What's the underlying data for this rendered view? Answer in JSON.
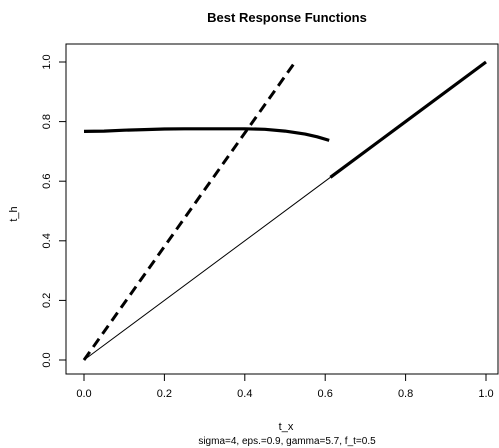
{
  "chart_data": {
    "type": "line",
    "title": "Best Response Functions",
    "xlabel": "t_x",
    "ylabel": "t_h",
    "subtitle": "sigma=4, eps.=0.9, gamma=5.7, f_t=0.5",
    "xlim": [
      0,
      1
    ],
    "ylim": [
      0,
      1
    ],
    "xticks": [
      "0.0",
      "0.2",
      "0.4",
      "0.6",
      "0.8",
      "1.0"
    ],
    "yticks": [
      "0.0",
      "0.2",
      "0.4",
      "0.6",
      "0.8",
      "1.0"
    ],
    "grid": false,
    "series": [
      {
        "style": "solid-thick",
        "x": [
          0,
          0.05,
          0.1,
          0.15,
          0.2,
          0.25,
          0.3,
          0.35,
          0.4,
          0.45,
          0.5,
          0.55,
          0.58,
          0.61
        ],
        "y": [
          0.767,
          0.768,
          0.771,
          0.773,
          0.775,
          0.776,
          0.776,
          0.776,
          0.776,
          0.774,
          0.768,
          0.758,
          0.749,
          0.737
        ]
      },
      {
        "style": "dashed-thick",
        "x": [
          0,
          0.525
        ],
        "y": [
          0,
          1
        ]
      },
      {
        "style": "solid-thin",
        "x": [
          0,
          0.613
        ],
        "y": [
          0,
          0.613
        ]
      },
      {
        "style": "solid-thick",
        "x": [
          0.613,
          1
        ],
        "y": [
          0.613,
          1
        ]
      }
    ]
  }
}
